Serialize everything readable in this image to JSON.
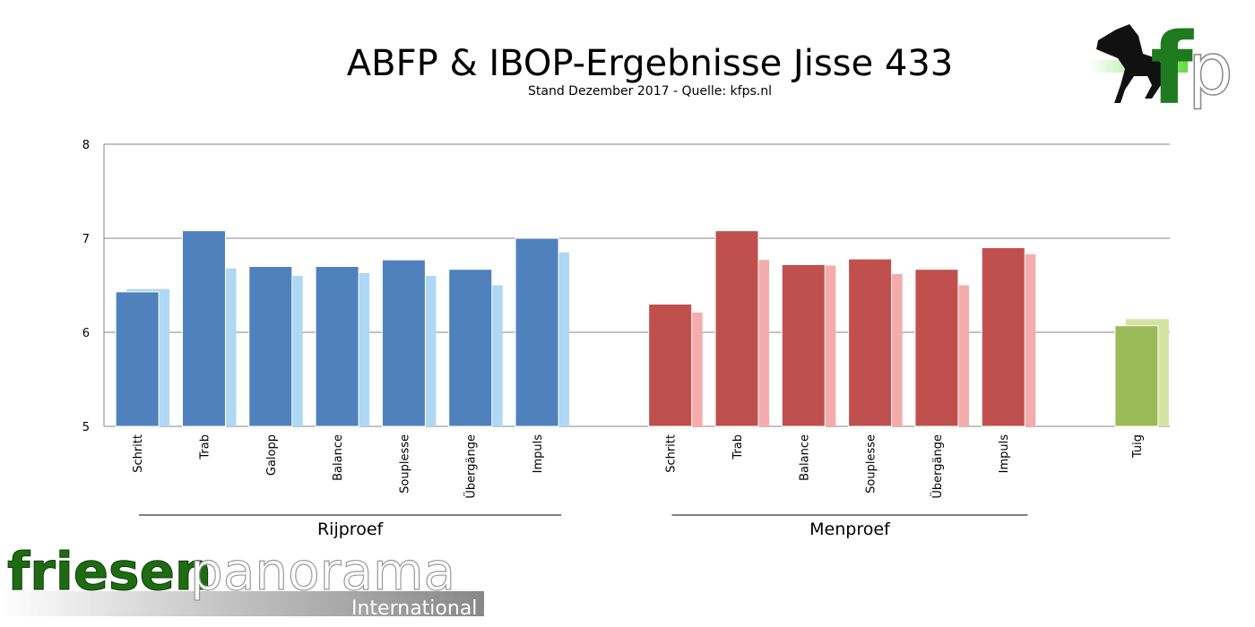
{
  "chart_data": {
    "type": "bar",
    "title": "ABFP & IBOP-Ergebnisse Jisse 433",
    "subtitle": "Stand Dezember 2017 - Quelle: kfps.nl",
    "xlabel": "",
    "ylabel": "",
    "ylim": [
      5,
      8
    ],
    "yticks": [
      "5",
      "6",
      "7",
      "8"
    ],
    "grid": true,
    "legend": "none",
    "groups": [
      {
        "label": "Rijproef",
        "color": "#4f81bd",
        "light_color": "#aed8f3",
        "categories": [
          "Schritt",
          "Trab",
          "Galopp",
          "Balance",
          "Souplesse",
          "Übergänge",
          "Impuls"
        ],
        "series": [
          {
            "values": [
              6.43,
              7.08,
              6.7,
              6.7,
              6.77,
              6.67,
              7.0
            ]
          },
          {
            "values": [
              6.46,
              6.68,
              6.6,
              6.63,
              6.6,
              6.5,
              6.85
            ]
          }
        ]
      },
      {
        "label": "Menproef",
        "color": "#c0504d",
        "light_color": "#f4abab",
        "categories": [
          "Schritt",
          "Trab",
          "Balance",
          "Souplesse",
          "Übergänge",
          "Impuls"
        ],
        "series": [
          {
            "values": [
              6.3,
              7.08,
              6.72,
              6.78,
              6.67,
              6.9
            ]
          },
          {
            "values": [
              6.21,
              6.77,
              6.71,
              6.62,
              6.5,
              6.83
            ]
          }
        ]
      },
      {
        "label": "",
        "color": "#9bbb59",
        "light_color": "#d3e4a2",
        "categories": [
          "Tuig"
        ],
        "series": [
          {
            "values": [
              6.07
            ]
          },
          {
            "values": [
              6.14
            ]
          }
        ]
      }
    ]
  },
  "logos": {
    "top_right": "fp",
    "bottom_left_main_1": "friesen",
    "bottom_left_main_2": "panorama",
    "bottom_left_sub": "International"
  }
}
